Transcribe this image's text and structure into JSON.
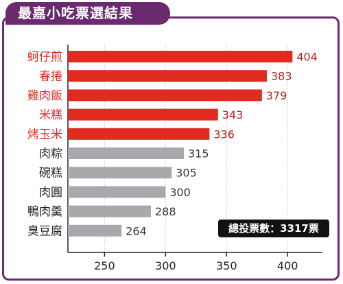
{
  "title": "最嘉小吃票選結果",
  "total_votes_label": "總投票數：3317票",
  "colors": {
    "frame": "#6a2a6e",
    "top5": "#e02b20",
    "others": "#a7a9ac",
    "axis": "#222222"
  },
  "chart_data": {
    "type": "bar",
    "orientation": "horizontal",
    "title": "最嘉小吃票選結果",
    "categories": [
      "蚵仔煎",
      "春捲",
      "雞肉飯",
      "米糕",
      "烤玉米",
      "肉粽",
      "碗糕",
      "肉圓",
      "鴨肉羹",
      "臭豆腐"
    ],
    "values": [
      404,
      383,
      379,
      343,
      336,
      315,
      305,
      300,
      288,
      264
    ],
    "highlight_top_n": 5,
    "xlim": [
      220,
      410
    ],
    "xticks": [
      250,
      300,
      350,
      400
    ],
    "grid": true,
    "xlabel": "",
    "ylabel": ""
  }
}
